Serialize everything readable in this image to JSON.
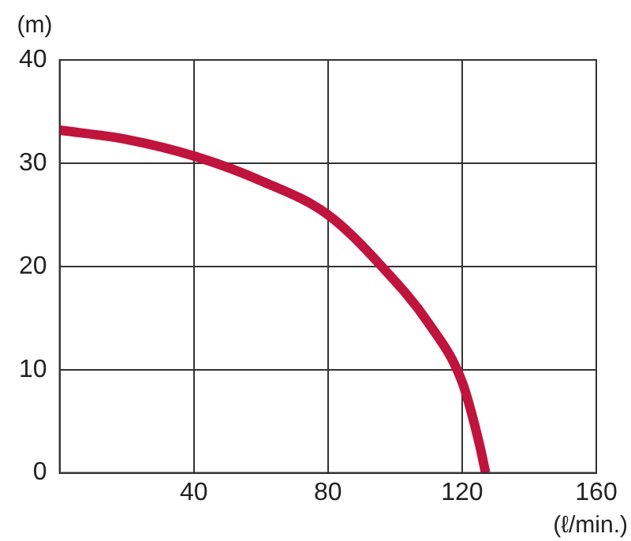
{
  "chart_data": {
    "type": "line",
    "xlabel": "(ℓ/min.)",
    "ylabel": "(m)",
    "x": [
      0,
      20,
      40,
      60,
      80,
      96,
      110,
      120,
      125,
      127
    ],
    "series": [
      {
        "color": "#c0143c",
        "values": [
          33.2,
          32.3,
          30.7,
          28.3,
          25,
          20,
          14.5,
          8.8,
          3,
          0
        ]
      }
    ],
    "xlim": [
      0,
      160
    ],
    "xticks": [
      {
        "value": 0,
        "label": null
      },
      40,
      80,
      120,
      160
    ],
    "ylim": [
      0,
      40
    ],
    "yticks": [
      0,
      10,
      20,
      30,
      40
    ],
    "grid": true,
    "legend": false,
    "marker": "none",
    "line_style": "solid"
  }
}
